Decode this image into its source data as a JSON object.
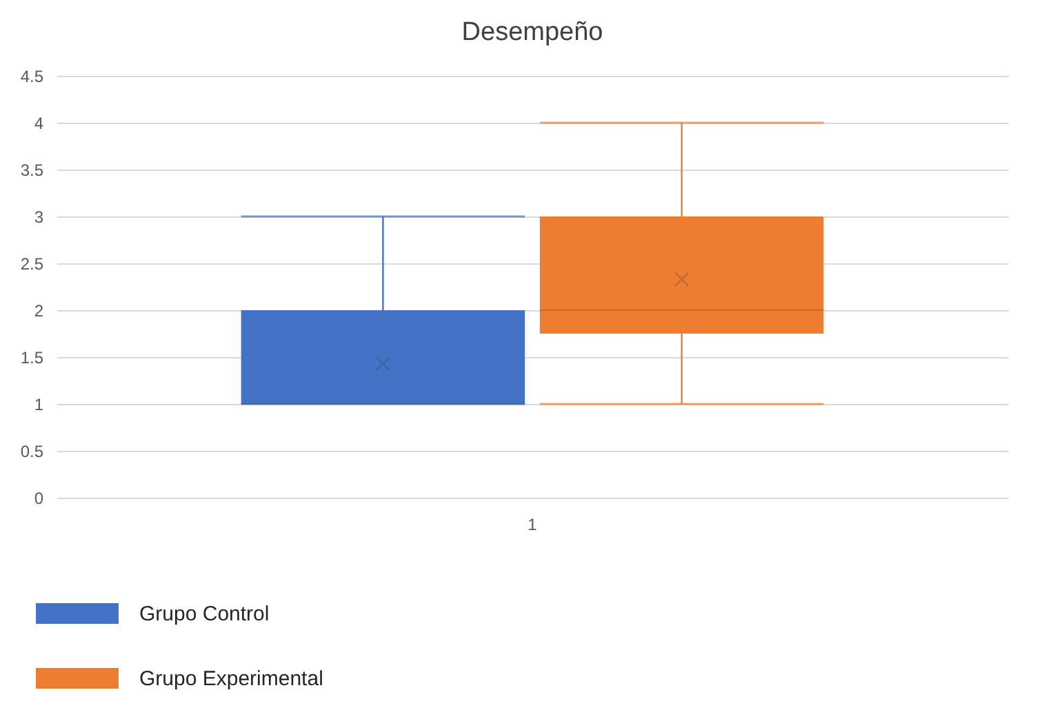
{
  "chart_data": {
    "type": "box",
    "title": "Desempeño",
    "categories": [
      "1"
    ],
    "series": [
      {
        "name": "Grupo Control",
        "color": "#4472c4",
        "boxes": [
          {
            "low": 1,
            "q1": 1,
            "median": 1,
            "q3": 2,
            "high": 3,
            "mean": 1.43
          }
        ]
      },
      {
        "name": "Grupo Experimental",
        "color": "#ed7d31",
        "boxes": [
          {
            "low": 1,
            "q1": 1.75,
            "median": 2,
            "q3": 3,
            "high": 4,
            "mean": 2.33
          }
        ]
      }
    ],
    "ylim": [
      0,
      4.5
    ],
    "yticks": [
      0,
      0.5,
      1,
      1.5,
      2,
      2.5,
      3,
      3.5,
      4,
      4.5
    ],
    "grid": true,
    "legend": "bottom"
  }
}
